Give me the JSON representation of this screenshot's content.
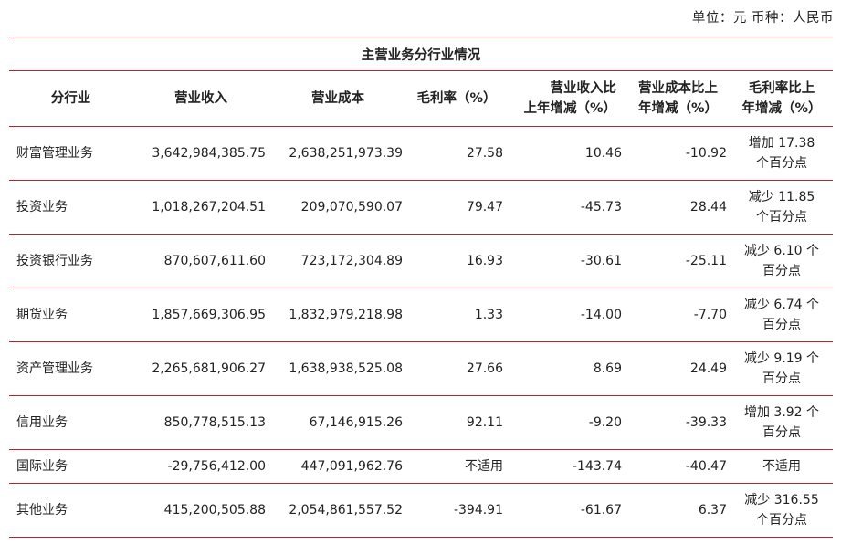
{
  "unit_line": "单位：元  币种：人民币",
  "table": {
    "caption": "主营业务分行业情况",
    "headers": {
      "industry": "分行业",
      "revenue": "营业收入",
      "cost": "营业成本",
      "margin": "毛利率（%）",
      "revenue_yoy_l1": "营业收入比",
      "revenue_yoy_l2": "上年增减（%）",
      "cost_yoy_l1": "营业成本比上",
      "cost_yoy_l2": "年增减（%）",
      "margin_yoy_l1": "毛利率比上",
      "margin_yoy_l2": "年增减（%）"
    },
    "rows": [
      {
        "industry": "财富管理业务",
        "revenue": "3,642,984,385.75",
        "cost": "2,638,251,973.39",
        "margin": "27.58",
        "revenue_yoy": "10.46",
        "cost_yoy": "-10.92",
        "margin_yoy_l1": "增加 17.38",
        "margin_yoy_l2": "个百分点"
      },
      {
        "industry": "投资业务",
        "revenue": "1,018,267,204.51",
        "cost": "209,070,590.07",
        "margin": "79.47",
        "revenue_yoy": "-45.73",
        "cost_yoy": "28.44",
        "margin_yoy_l1": "减少 11.85",
        "margin_yoy_l2": "个百分点"
      },
      {
        "industry": "投资银行业务",
        "revenue": "870,607,611.60",
        "cost": "723,172,304.89",
        "margin": "16.93",
        "revenue_yoy": "-30.61",
        "cost_yoy": "-25.11",
        "margin_yoy_l1": "减少 6.10 个",
        "margin_yoy_l2": "百分点"
      },
      {
        "industry": "期货业务",
        "revenue": "1,857,669,306.95",
        "cost": "1,832,979,218.98",
        "margin": "1.33",
        "revenue_yoy": "-14.00",
        "cost_yoy": "-7.70",
        "margin_yoy_l1": "减少 6.74 个",
        "margin_yoy_l2": "百分点"
      },
      {
        "industry": "资产管理业务",
        "revenue": "2,265,681,906.27",
        "cost": "1,638,938,525.08",
        "margin": "27.66",
        "revenue_yoy": "8.69",
        "cost_yoy": "24.49",
        "margin_yoy_l1": "减少 9.19 个",
        "margin_yoy_l2": "百分点"
      },
      {
        "industry": "信用业务",
        "revenue": "850,778,515.13",
        "cost": "67,146,915.26",
        "margin": "92.11",
        "revenue_yoy": "-9.20",
        "cost_yoy": "-39.33",
        "margin_yoy_l1": "增加 3.92 个",
        "margin_yoy_l2": "百分点"
      },
      {
        "industry": "国际业务",
        "revenue": "-29,756,412.00",
        "cost": "447,091,962.76",
        "margin": "不适用",
        "revenue_yoy": "-143.74",
        "cost_yoy": "-40.47",
        "margin_yoy_l1": "不适用",
        "margin_yoy_l2": ""
      },
      {
        "industry": "其他业务",
        "revenue": "415,200,505.88",
        "cost": "2,054,861,557.52",
        "margin": "-394.91",
        "revenue_yoy": "-61.67",
        "cost_yoy": "6.37",
        "margin_yoy_l1": "减少 316.55",
        "margin_yoy_l2": "个百分点"
      }
    ]
  }
}
